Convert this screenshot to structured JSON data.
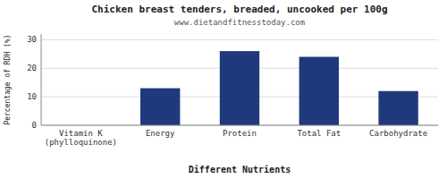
{
  "chart_data": {
    "type": "bar",
    "title": "Chicken breast tenders, breaded, uncooked per 100g",
    "subtitle": "www.dietandfitnesstoday.com",
    "xlabel": "Different Nutrients",
    "ylabel": "Percentage of RDH (%)",
    "categories": [
      "Vitamin K (phylloquinone)",
      "Energy",
      "Protein",
      "Total Fat",
      "Carbohydrate"
    ],
    "values": [
      0,
      13,
      26,
      24,
      12
    ],
    "color": "#1F3A7A",
    "ylim": [
      0,
      32
    ],
    "yticks": [
      0,
      10,
      20,
      30
    ],
    "grid": true
  }
}
